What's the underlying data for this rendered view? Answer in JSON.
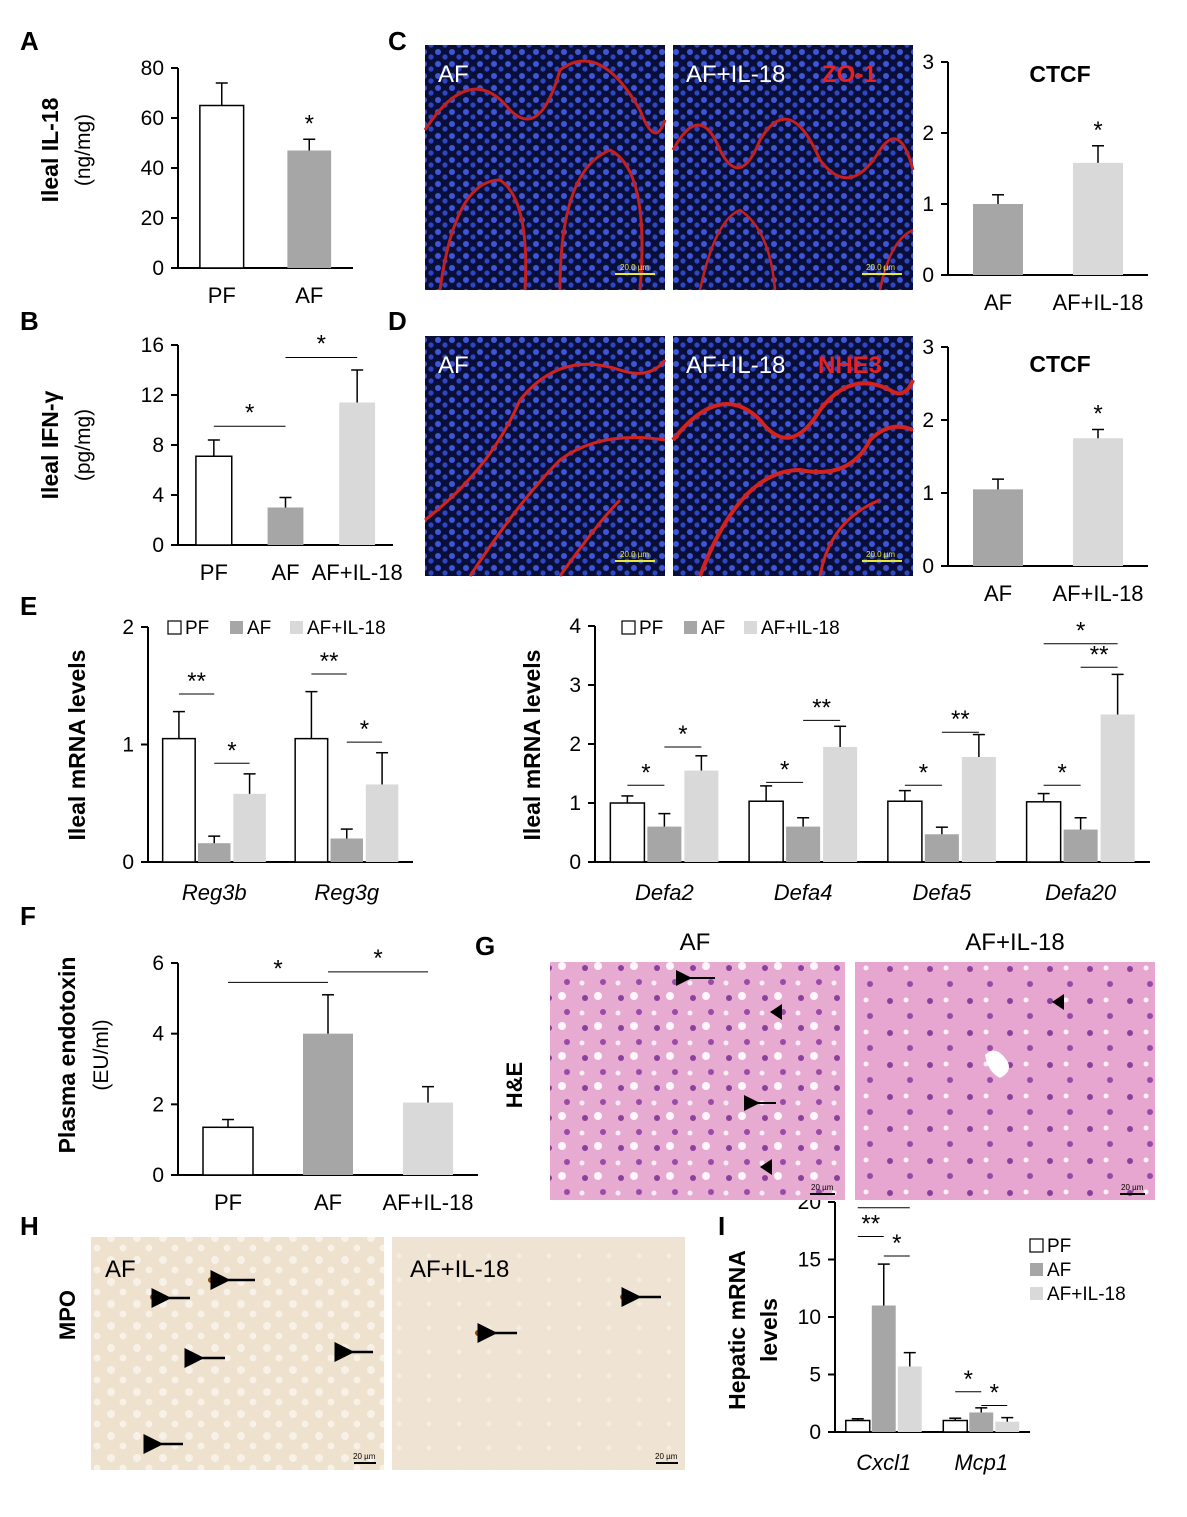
{
  "panel_letters": {
    "A": "A",
    "B": "B",
    "C": "C",
    "D": "D",
    "E": "E",
    "F": "F",
    "G": "G",
    "H": "H",
    "I": "I"
  },
  "micrographs": {
    "C": {
      "left_label": "AF",
      "right_label": "AF+IL-18",
      "stain_label": "ZO-1",
      "scale_left": "20.0 µm",
      "scale_right": "20.0 µm"
    },
    "D": {
      "left_label": "AF",
      "right_label": "AF+IL-18",
      "stain_label": "NHE3",
      "scale_left": "20.0 µm",
      "scale_right": "20.0 µm"
    },
    "G": {
      "left_label": "AF",
      "right_label": "AF+IL-18",
      "side_label": "H&E",
      "scale_left": "20 µm",
      "scale_right": "20 µm"
    },
    "H": {
      "left_label": "AF",
      "right_label": "AF+IL-18",
      "side_label": "MPO",
      "scale_left": "20 µm",
      "scale_right": "20 µm"
    }
  },
  "colors": {
    "PF": "#ffffff",
    "AF": "#a6a6a6",
    "AF+IL-18": "#d9d9d9",
    "zo1": "#e8201f",
    "nhe3": "#e8201f",
    "dapi": "#2a3db8",
    "he": "#e2a3cc",
    "mpo": "#efe3cf"
  },
  "chart_data": [
    {
      "id": "A",
      "type": "bar",
      "ylabel": "Ileal IL-18",
      "yunit": "(ng/mg)",
      "ylim": [
        0,
        80
      ],
      "yticks": [
        0,
        20,
        40,
        60,
        80
      ],
      "categories": [
        "PF",
        "AF"
      ],
      "values": [
        65,
        47
      ],
      "errors": [
        9,
        4.5
      ],
      "fills": [
        "PF",
        "AF"
      ],
      "stars": [
        {
          "text": "*",
          "cat": 1
        }
      ],
      "brackets": []
    },
    {
      "id": "B",
      "type": "bar",
      "ylabel": "Ileal IFN-γ",
      "yunit": "(pg/mg)",
      "ylim": [
        0,
        16
      ],
      "yticks": [
        0,
        4,
        8,
        12,
        16
      ],
      "categories": [
        "PF",
        "AF",
        "AF+IL-18"
      ],
      "values": [
        7.1,
        3.0,
        11.4
      ],
      "errors": [
        1.3,
        0.8,
        2.6
      ],
      "fills": [
        "PF",
        "AF",
        "AF+IL-18"
      ],
      "stars": [],
      "brackets": [
        {
          "from": 0,
          "to": 1,
          "level": 9.5,
          "text": "*"
        },
        {
          "from": 1,
          "to": 2,
          "level": 15.0,
          "text": "*"
        }
      ]
    },
    {
      "id": "C",
      "type": "bar",
      "title": "CTCF",
      "ylim": [
        0,
        3
      ],
      "yticks": [
        0,
        1,
        2,
        3
      ],
      "categories": [
        "AF",
        "AF+IL-18"
      ],
      "values": [
        1.0,
        1.58
      ],
      "errors": [
        0.13,
        0.24
      ],
      "fills": [
        "AF",
        "AF+IL-18"
      ],
      "stars": [
        {
          "text": "*",
          "cat": 1
        }
      ],
      "brackets": []
    },
    {
      "id": "D",
      "type": "bar",
      "title": "CTCF",
      "ylim": [
        0,
        3
      ],
      "yticks": [
        0,
        1,
        2,
        3
      ],
      "categories": [
        "AF",
        "AF+IL-18"
      ],
      "values": [
        1.05,
        1.75
      ],
      "errors": [
        0.14,
        0.12
      ],
      "fills": [
        "AF",
        "AF+IL-18"
      ],
      "stars": [
        {
          "text": "*",
          "cat": 1
        }
      ],
      "brackets": []
    },
    {
      "id": "E1",
      "type": "bar",
      "ylabel": "Ileal mRNA levels",
      "ylim": [
        0,
        2
      ],
      "yticks": [
        0,
        1,
        2
      ],
      "categories": [
        "Reg3b",
        "Reg3g"
      ],
      "italic_categories": true,
      "legend": [
        "PF",
        "AF",
        "AF+IL-18"
      ],
      "series": [
        {
          "name": "PF",
          "values": [
            1.05,
            1.05
          ],
          "errors": [
            0.23,
            0.4
          ]
        },
        {
          "name": "AF",
          "values": [
            0.16,
            0.2
          ],
          "errors": [
            0.06,
            0.08
          ]
        },
        {
          "name": "AF+IL-18",
          "values": [
            0.58,
            0.66
          ],
          "errors": [
            0.17,
            0.27
          ]
        }
      ],
      "brackets": [
        {
          "cat": 0,
          "from": 0,
          "to": 1,
          "level": 1.43,
          "text": "**"
        },
        {
          "cat": 0,
          "from": 1,
          "to": 2,
          "level": 0.84,
          "text": "*"
        },
        {
          "cat": 1,
          "from": 0,
          "to": 1,
          "level": 1.6,
          "text": "**"
        },
        {
          "cat": 1,
          "from": 1,
          "to": 2,
          "level": 1.02,
          "text": "*"
        }
      ]
    },
    {
      "id": "E2",
      "type": "bar",
      "ylabel": "Ileal mRNA levels",
      "ylim": [
        0,
        4
      ],
      "yticks": [
        0,
        1,
        2,
        3,
        4
      ],
      "categories": [
        "Defa2",
        "Defa4",
        "Defa5",
        "Defa20"
      ],
      "italic_categories": true,
      "legend": [
        "PF",
        "AF",
        "AF+IL-18"
      ],
      "series": [
        {
          "name": "PF",
          "values": [
            1.0,
            1.03,
            1.03,
            1.02
          ],
          "errors": [
            0.12,
            0.26,
            0.18,
            0.14
          ]
        },
        {
          "name": "AF",
          "values": [
            0.6,
            0.6,
            0.47,
            0.55
          ],
          "errors": [
            0.22,
            0.15,
            0.12,
            0.2
          ]
        },
        {
          "name": "AF+IL-18",
          "values": [
            1.55,
            1.95,
            1.78,
            2.5
          ],
          "errors": [
            0.25,
            0.35,
            0.38,
            0.68
          ]
        }
      ],
      "brackets": [
        {
          "cat": 0,
          "from": 0,
          "to": 1,
          "level": 1.3,
          "text": "*"
        },
        {
          "cat": 0,
          "from": 1,
          "to": 2,
          "level": 1.95,
          "text": "*"
        },
        {
          "cat": 1,
          "from": 0,
          "to": 1,
          "level": 1.35,
          "text": "*"
        },
        {
          "cat": 1,
          "from": 1,
          "to": 2,
          "level": 2.4,
          "text": "**"
        },
        {
          "cat": 2,
          "from": 0,
          "to": 1,
          "level": 1.3,
          "text": "*"
        },
        {
          "cat": 2,
          "from": 1,
          "to": 2,
          "level": 2.2,
          "text": "**"
        },
        {
          "cat": 3,
          "from": 0,
          "to": 1,
          "level": 1.3,
          "text": "*"
        },
        {
          "cat": 3,
          "from": 1,
          "to": 2,
          "level": 3.3,
          "text": "**"
        },
        {
          "cat": 3,
          "from": 0,
          "to": 2,
          "level": 3.7,
          "text": "*"
        }
      ]
    },
    {
      "id": "F",
      "type": "bar",
      "ylabel": "Plasma endotoxin",
      "yunit": "(EU/ml)",
      "ylim": [
        0,
        6
      ],
      "yticks": [
        0,
        2,
        4,
        6
      ],
      "categories": [
        "PF",
        "AF",
        "AF+IL-18"
      ],
      "values": [
        1.35,
        4.0,
        2.05
      ],
      "errors": [
        0.22,
        1.1,
        0.45
      ],
      "fills": [
        "PF",
        "AF",
        "AF+IL-18"
      ],
      "stars": [],
      "brackets": [
        {
          "from": 0,
          "to": 1,
          "level": 5.45,
          "text": "*"
        },
        {
          "from": 1,
          "to": 2,
          "level": 5.75,
          "text": "*"
        }
      ]
    },
    {
      "id": "I",
      "type": "bar",
      "ylabel": "Hepatic mRNA",
      "ylabel2": "levels",
      "ylim": [
        0,
        20
      ],
      "yticks": [
        0,
        5,
        10,
        15,
        20
      ],
      "categories": [
        "Cxcl1",
        "Mcp1"
      ],
      "italic_categories": true,
      "legend": [
        "PF",
        "AF",
        "AF+IL-18"
      ],
      "series": [
        {
          "name": "PF",
          "values": [
            1.0,
            1.0
          ],
          "errors": [
            0.15,
            0.2
          ]
        },
        {
          "name": "AF",
          "values": [
            11.0,
            1.7
          ],
          "errors": [
            3.6,
            0.4
          ]
        },
        {
          "name": "AF+IL-18",
          "values": [
            5.7,
            0.9
          ],
          "errors": [
            1.2,
            0.35
          ]
        }
      ],
      "brackets": [
        {
          "cat": 0,
          "from": 0,
          "to": 1,
          "level": 17.0,
          "text": "**"
        },
        {
          "cat": 0,
          "from": 1,
          "to": 2,
          "level": 15.3,
          "text": "*"
        },
        {
          "cat": 0,
          "from": 0,
          "to": 2,
          "level": 19.5,
          "text": "*"
        },
        {
          "cat": 1,
          "from": 0,
          "to": 1,
          "level": 3.5,
          "text": "*"
        },
        {
          "cat": 1,
          "from": 1,
          "to": 2,
          "level": 2.3,
          "text": "*"
        }
      ]
    }
  ]
}
